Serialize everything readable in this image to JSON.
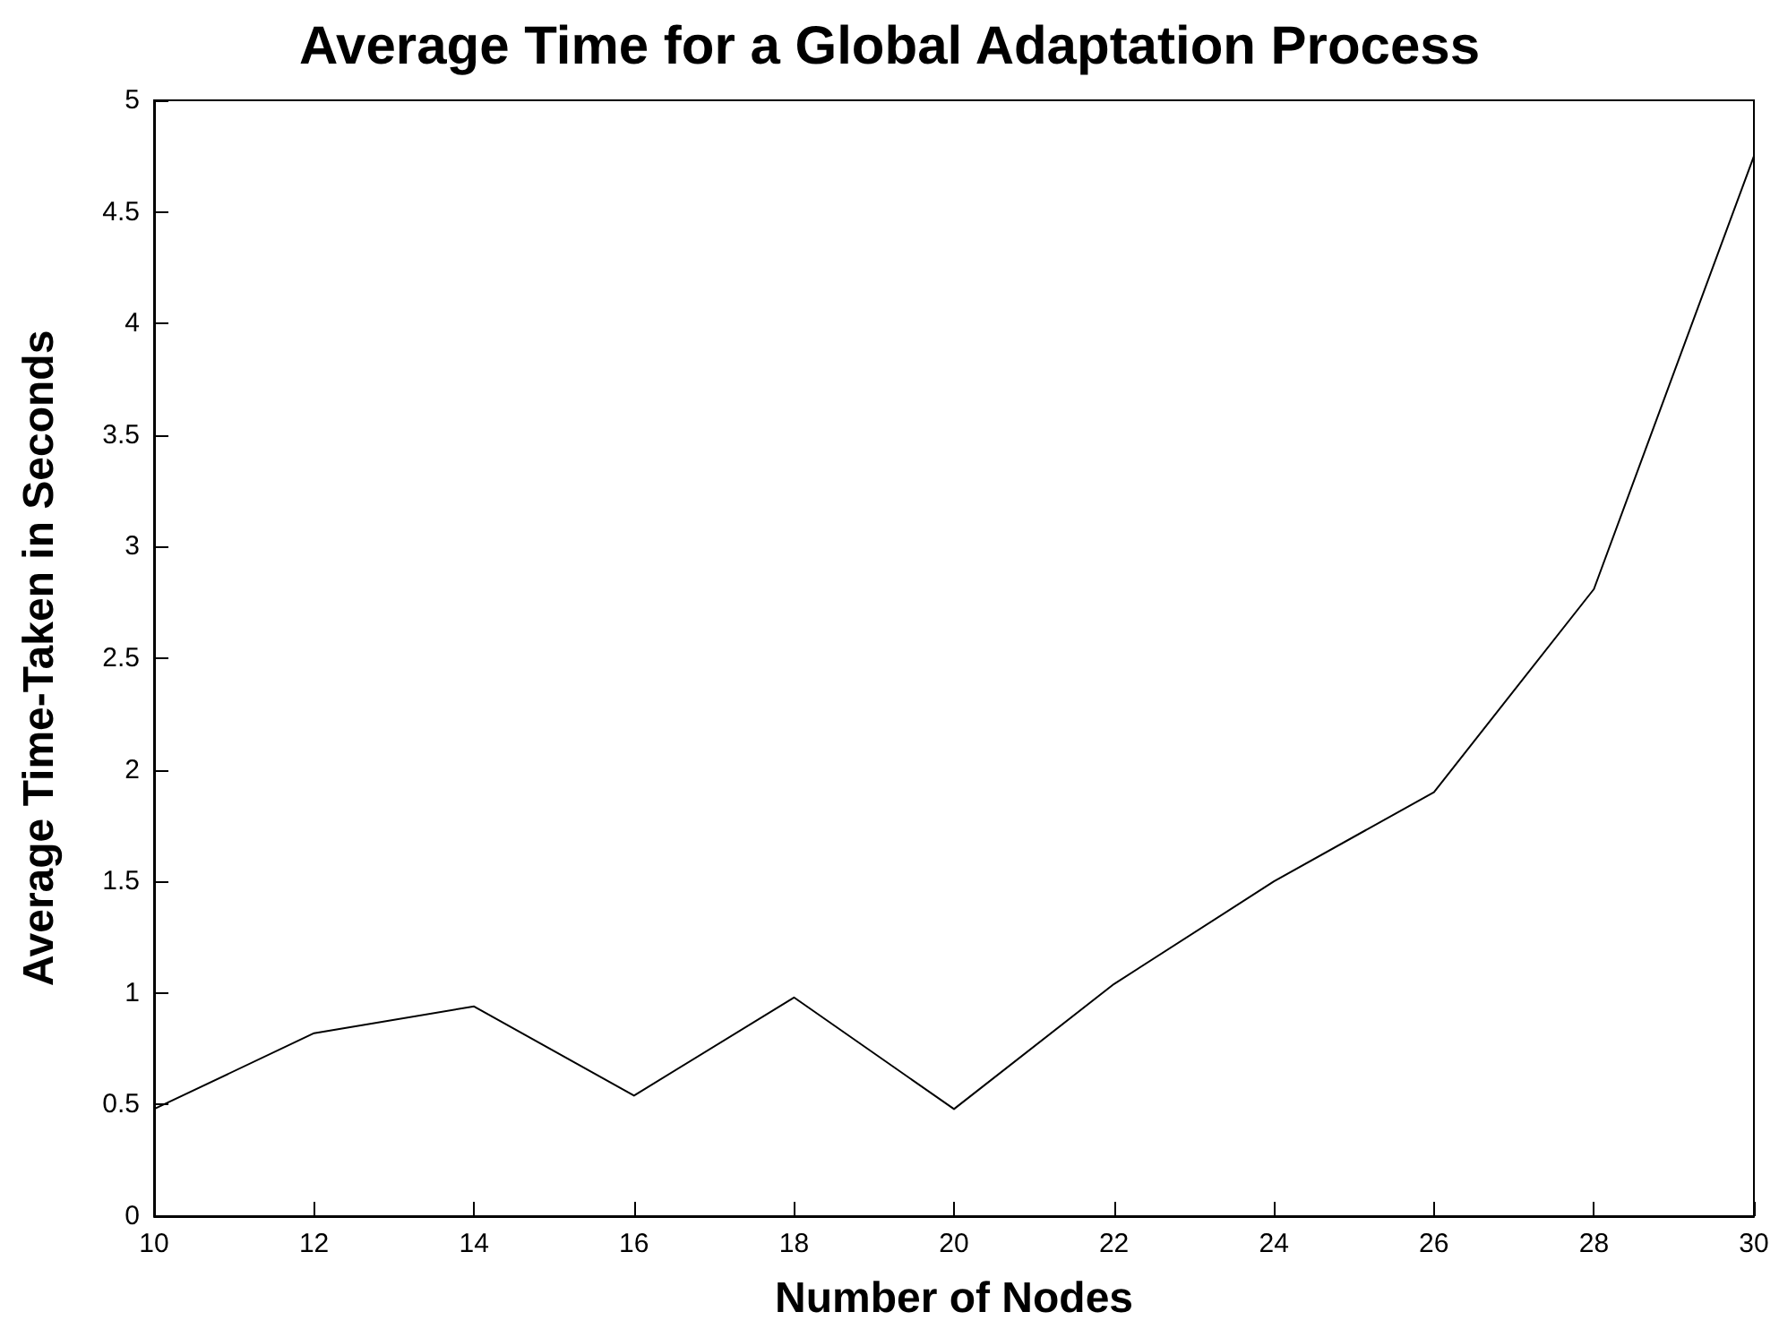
{
  "chart_data": {
    "type": "line",
    "title": "Average Time for a Global Adaptation Process",
    "xlabel": "Number of Nodes",
    "ylabel": "Average Time-Taken in Seconds",
    "x": [
      10,
      12,
      14,
      16,
      18,
      20,
      22,
      24,
      26,
      28,
      30
    ],
    "series": [
      {
        "color": "#000000",
        "values": [
          0.48,
          0.82,
          0.94,
          0.54,
          0.98,
          0.48,
          1.04,
          1.5,
          1.9,
          2.81,
          4.75
        ]
      }
    ],
    "xlim": [
      10,
      30
    ],
    "xticks": [
      10,
      12,
      14,
      16,
      18,
      20,
      22,
      24,
      26,
      28,
      30
    ],
    "ylim": [
      0,
      5
    ],
    "yticks": [
      0,
      0.5,
      1,
      1.5,
      2,
      2.5,
      3,
      3.5,
      4,
      4.5,
      5
    ],
    "grid": false,
    "marker": "none",
    "line_style": "solid"
  }
}
